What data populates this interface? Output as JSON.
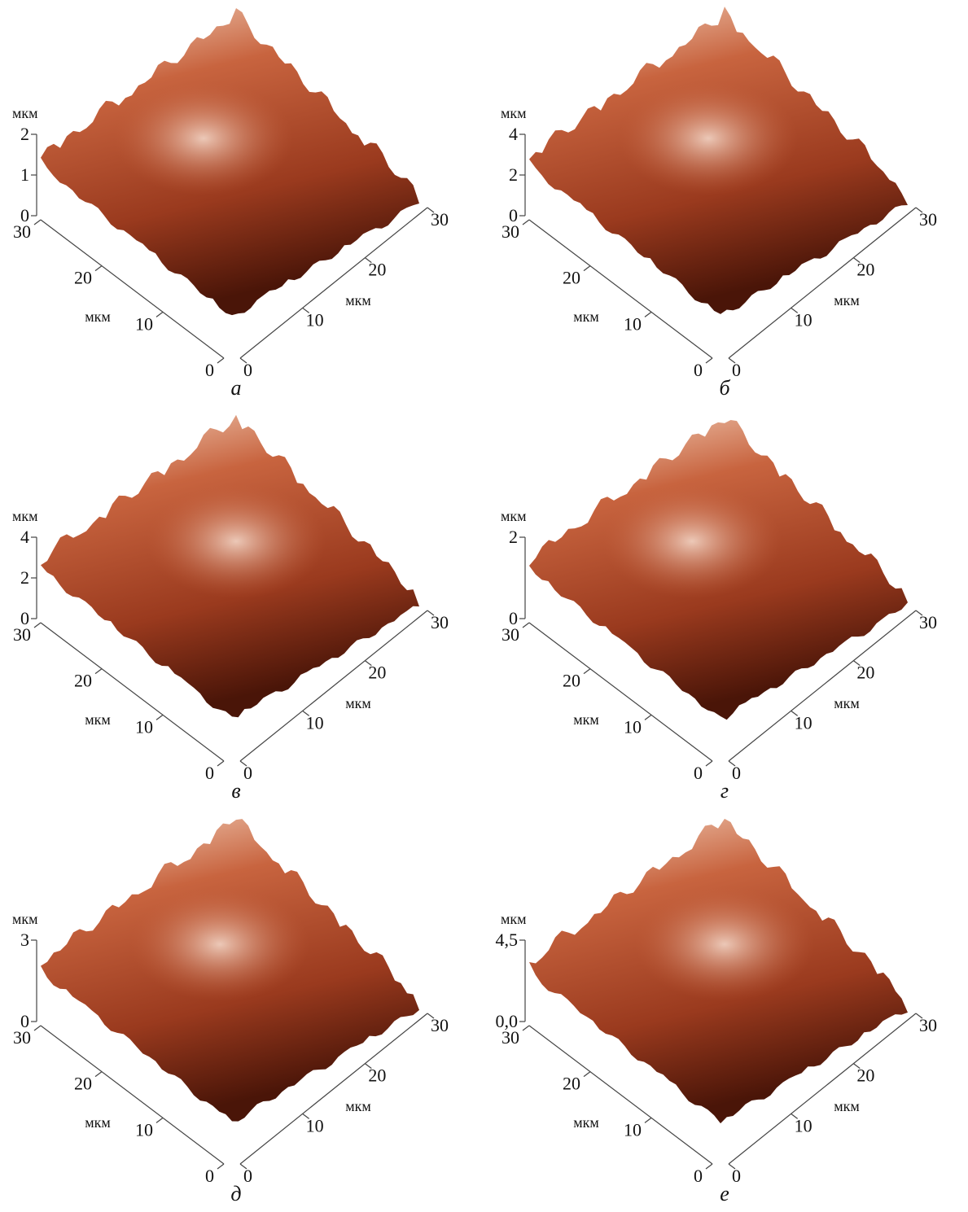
{
  "panels": [
    {
      "caption": "а",
      "z_label": "мкм",
      "z_ticks": [
        0,
        1,
        2
      ],
      "left_label": "мкм",
      "left_ticks": [
        30,
        20,
        10,
        0
      ],
      "right_label": "мкм",
      "right_ticks": [
        0,
        10,
        20,
        30
      ]
    },
    {
      "caption": "б",
      "z_label": "мкм",
      "z_ticks": [
        0,
        2,
        4
      ],
      "left_label": "мкм",
      "left_ticks": [
        30,
        20,
        10,
        0
      ],
      "right_label": "мкм",
      "right_ticks": [
        0,
        10,
        20,
        30
      ]
    },
    {
      "caption": "в",
      "z_label": "мкм",
      "z_ticks": [
        0,
        2,
        4
      ],
      "left_label": "мкм",
      "left_ticks": [
        30,
        20,
        10,
        0
      ],
      "right_label": "мкм",
      "right_ticks": [
        0,
        10,
        20,
        30
      ]
    },
    {
      "caption": "г",
      "z_label": "мкм",
      "z_ticks": [
        0,
        2
      ],
      "left_label": "мкм",
      "left_ticks": [
        30,
        20,
        10,
        0
      ],
      "right_label": "мкм",
      "right_ticks": [
        0,
        10,
        20,
        30
      ]
    },
    {
      "caption": "д",
      "z_label": "мкм",
      "z_ticks": [
        0,
        3
      ],
      "left_label": "мкм",
      "left_ticks": [
        30,
        20,
        10,
        0
      ],
      "right_label": "мкм",
      "right_ticks": [
        0,
        10,
        20,
        30
      ]
    },
    {
      "caption": "е",
      "z_label": "мкм",
      "z_ticks": [
        {
          "value": 0,
          "label": "0,0"
        },
        {
          "value": 4.5,
          "label": "4,5"
        }
      ],
      "left_label": "мкм",
      "left_ticks": [
        30,
        20,
        10,
        0
      ],
      "right_label": "мкм",
      "right_ticks": [
        0,
        10,
        20,
        30
      ]
    }
  ]
}
